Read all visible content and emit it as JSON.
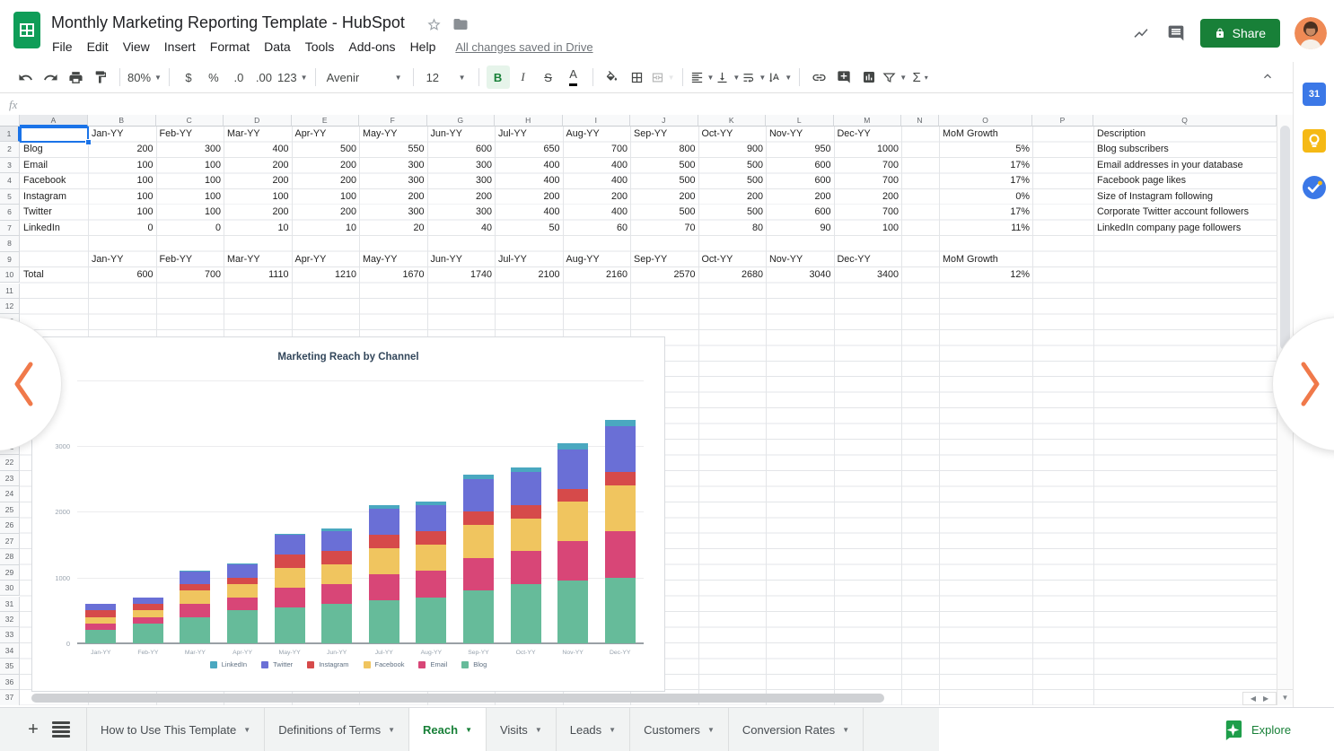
{
  "header": {
    "doc_title": "Monthly Marketing Reporting Template - HubSpot",
    "menus": [
      "File",
      "Edit",
      "View",
      "Insert",
      "Format",
      "Data",
      "Tools",
      "Add-ons",
      "Help"
    ],
    "save_status": "All changes saved in Drive",
    "share_label": "Share"
  },
  "toolbar": {
    "zoom": "80%",
    "currency": "$",
    "percent": "%",
    "decrease_decimal": ".0",
    "increase_decimal": ".00",
    "more_formats": "123",
    "font": "Avenir",
    "font_size": "12",
    "bold": "B",
    "italic": "I",
    "strikethrough": "S",
    "text_color": "A",
    "functions": "Σ"
  },
  "formula_bar": {
    "label": "fx"
  },
  "sheet": {
    "columns": [
      "A",
      "B",
      "C",
      "D",
      "E",
      "F",
      "G",
      "H",
      "I",
      "J",
      "K",
      "L",
      "M",
      "N",
      "O",
      "P",
      "Q"
    ],
    "row_start": 1,
    "row_end": 37,
    "months": [
      "Jan-YY",
      "Feb-YY",
      "Mar-YY",
      "Apr-YY",
      "May-YY",
      "Jun-YY",
      "Jul-YY",
      "Aug-YY",
      "Sep-YY",
      "Oct-YY",
      "Nov-YY",
      "Dec-YY"
    ],
    "mom_header": "MoM Growth",
    "description_header": "Description",
    "channels": [
      {
        "name": "Blog",
        "values": [
          200,
          300,
          400,
          500,
          550,
          600,
          650,
          700,
          800,
          900,
          950,
          1000
        ],
        "mom": "5%",
        "description": "Blog subscribers"
      },
      {
        "name": "Email",
        "values": [
          100,
          100,
          200,
          200,
          300,
          300,
          400,
          400,
          500,
          500,
          600,
          700
        ],
        "mom": "17%",
        "description": "Email addresses in your database"
      },
      {
        "name": "Facebook",
        "values": [
          100,
          100,
          200,
          200,
          300,
          300,
          400,
          400,
          500,
          500,
          600,
          700
        ],
        "mom": "17%",
        "description": "Facebook page likes"
      },
      {
        "name": "Instagram",
        "values": [
          100,
          100,
          100,
          100,
          200,
          200,
          200,
          200,
          200,
          200,
          200,
          200
        ],
        "mom": "0%",
        "description": "Size of Instagram following"
      },
      {
        "name": "Twitter",
        "values": [
          100,
          100,
          200,
          200,
          300,
          300,
          400,
          400,
          500,
          500,
          600,
          700
        ],
        "mom": "17%",
        "description": "Corporate Twitter account followers"
      },
      {
        "name": "LinkedIn",
        "values": [
          0,
          0,
          10,
          10,
          20,
          40,
          50,
          60,
          70,
          80,
          90,
          100
        ],
        "mom": "11%",
        "description": "LinkedIn company page followers"
      }
    ],
    "total": {
      "label": "Total",
      "values": [
        600,
        700,
        1110,
        1210,
        1670,
        1740,
        2100,
        2160,
        2570,
        2680,
        3040,
        3400
      ],
      "mom": "12%"
    }
  },
  "chart_data": {
    "type": "bar",
    "stacked": true,
    "title": "Marketing Reach by Channel",
    "categories": [
      "Jan-YY",
      "Feb-YY",
      "Mar-YY",
      "Apr-YY",
      "May-YY",
      "Jun-YY",
      "Jul-YY",
      "Aug-YY",
      "Sep-YY",
      "Oct-YY",
      "Nov-YY",
      "Dec-YY"
    ],
    "series": [
      {
        "name": "Blog",
        "color": "#66bb9a",
        "values": [
          200,
          300,
          400,
          500,
          550,
          600,
          650,
          700,
          800,
          900,
          950,
          1000
        ]
      },
      {
        "name": "Email",
        "color": "#d84677",
        "values": [
          100,
          100,
          200,
          200,
          300,
          300,
          400,
          400,
          500,
          500,
          600,
          700
        ]
      },
      {
        "name": "Facebook",
        "color": "#f0c55f",
        "values": [
          100,
          100,
          200,
          200,
          300,
          300,
          400,
          400,
          500,
          500,
          600,
          700
        ]
      },
      {
        "name": "Instagram",
        "color": "#d64a4a",
        "values": [
          100,
          100,
          100,
          100,
          200,
          200,
          200,
          200,
          200,
          200,
          200,
          200
        ]
      },
      {
        "name": "Twitter",
        "color": "#6a6fd6",
        "values": [
          100,
          100,
          200,
          200,
          300,
          300,
          400,
          400,
          500,
          500,
          600,
          700
        ]
      },
      {
        "name": "LinkedIn",
        "color": "#4aa8c0",
        "values": [
          0,
          0,
          10,
          10,
          20,
          40,
          50,
          60,
          70,
          80,
          90,
          100
        ]
      }
    ],
    "legend": [
      "LinkedIn",
      "Twitter",
      "Instagram",
      "Facebook",
      "Email",
      "Blog"
    ],
    "legend_position": "bottom",
    "y_ticks": [
      0,
      1000,
      2000,
      3000
    ],
    "ylim": [
      0,
      4000
    ],
    "xlabel": "",
    "ylabel": "",
    "grid": true
  },
  "tabs": {
    "items": [
      {
        "label": "How to Use This Template",
        "active": false
      },
      {
        "label": "Definitions of Terms",
        "active": false
      },
      {
        "label": "Reach",
        "active": true
      },
      {
        "label": "Visits",
        "active": false
      },
      {
        "label": "Leads",
        "active": false
      },
      {
        "label": "Customers",
        "active": false
      },
      {
        "label": "Conversion Rates",
        "active": false
      }
    ],
    "explore_label": "Explore"
  },
  "side_panel": {
    "icons": [
      "calendar",
      "keep",
      "tasks"
    ],
    "calendar_text": "31"
  },
  "colors": {
    "accent_green": "#188038",
    "chart_title": "#33475b",
    "arrow_orange": "#f0794a",
    "selection_blue": "#1a73e8"
  }
}
